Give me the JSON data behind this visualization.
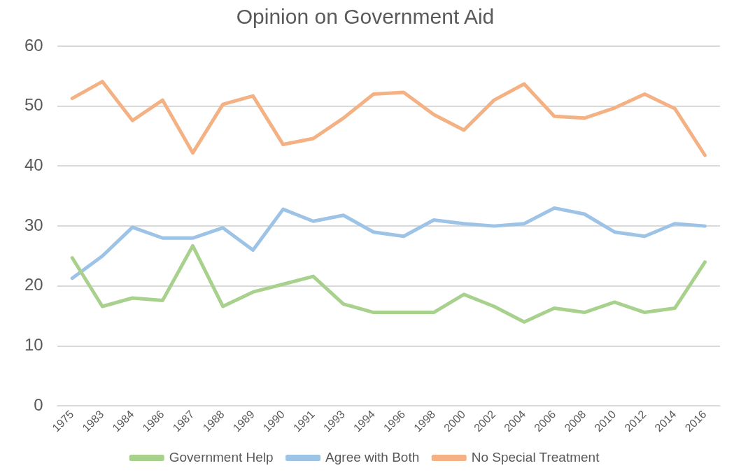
{
  "chart_data": {
    "type": "line",
    "title": "Opinion on Government Aid",
    "categories": [
      "1975",
      "1983",
      "1984",
      "1986",
      "1987",
      "1988",
      "1989",
      "1990",
      "1991",
      "1993",
      "1994",
      "1996",
      "1998",
      "2000",
      "2002",
      "2004",
      "2006",
      "2008",
      "2010",
      "2012",
      "2014",
      "2016"
    ],
    "series": [
      {
        "name": "Government Help",
        "color": "#a9d18e",
        "values": [
          24.7,
          16.6,
          18.0,
          17.6,
          26.7,
          16.6,
          19.0,
          20.3,
          21.6,
          17.0,
          15.6,
          15.6,
          15.6,
          18.6,
          16.6,
          14.0,
          16.3,
          15.6,
          17.3,
          15.6,
          16.3,
          24.0
        ]
      },
      {
        "name": "Agree with Both",
        "color": "#9dc3e6",
        "values": [
          21.3,
          25.0,
          29.8,
          28.0,
          28.0,
          29.7,
          26.0,
          32.8,
          30.8,
          31.8,
          29.0,
          28.3,
          31.0,
          30.4,
          30.0,
          30.4,
          33.0,
          32.0,
          29.0,
          28.3,
          30.4,
          30.0
        ]
      },
      {
        "name": "No Special Treatment",
        "color": "#f4b183",
        "values": [
          51.3,
          54.1,
          47.6,
          51.0,
          42.2,
          50.3,
          51.7,
          43.6,
          44.6,
          48.0,
          52.0,
          52.3,
          48.6,
          46.0,
          51.0,
          53.7,
          48.3,
          48.0,
          49.7,
          52.0,
          49.6,
          41.8
        ]
      }
    ],
    "ylim": [
      0,
      60
    ],
    "yticks": [
      0,
      10,
      20,
      30,
      40,
      50,
      60
    ],
    "grid": "y",
    "legend": "bottom",
    "marker": "none",
    "line_style": "solid"
  }
}
